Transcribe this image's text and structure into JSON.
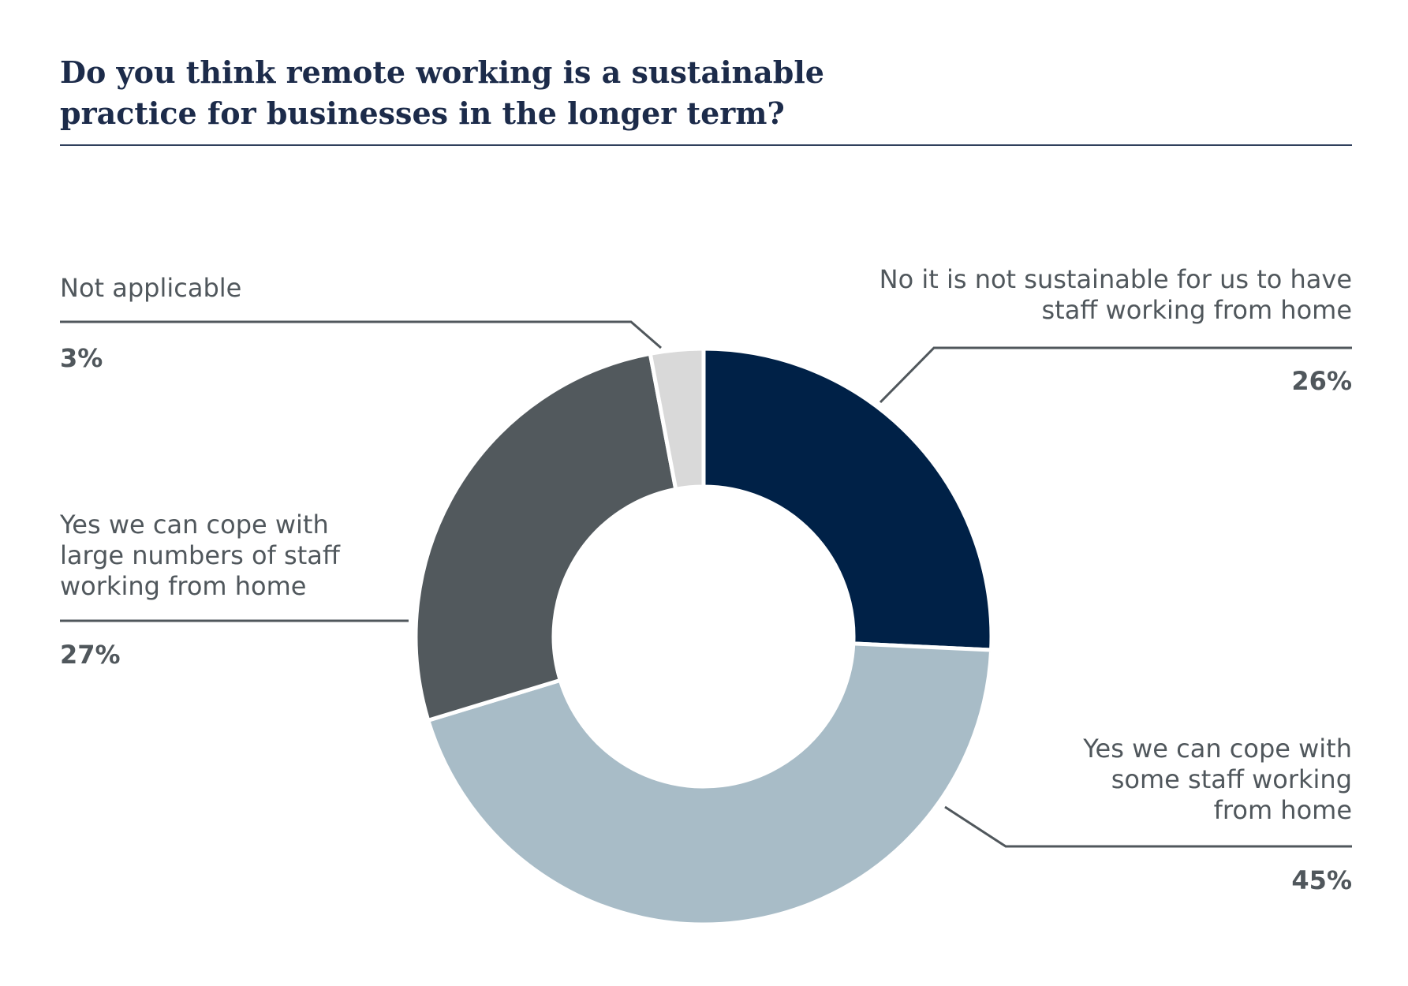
{
  "chart_data": {
    "type": "pie",
    "style": "donut",
    "title_lines": [
      "Do you think remote working is a sustainable",
      "practice for businesses in the longer term?"
    ],
    "slices": [
      {
        "label_lines": [
          "No it is not sustainable for us to have",
          "staff working from home"
        ],
        "value": 26,
        "value_label": "26%",
        "color": "#002147"
      },
      {
        "label_lines": [
          "Yes we can cope with",
          "some staff working",
          "from home"
        ],
        "value": 45,
        "value_label": "45%",
        "color": "#a8bcc7"
      },
      {
        "label_lines": [
          "Yes we can cope with",
          "large numbers of staff",
          "working from home"
        ],
        "value": 27,
        "value_label": "27%",
        "color": "#52595d"
      },
      {
        "label_lines": [
          "Not applicable"
        ],
        "value": 3,
        "value_label": "3%",
        "color": "#d9d9d9"
      }
    ],
    "start_angle": "12 o'clock",
    "direction": "clockwise",
    "legend": "none",
    "leader_line_color": "#50575c",
    "title_color": "#1c2b4a",
    "text_color": "#50575c"
  }
}
